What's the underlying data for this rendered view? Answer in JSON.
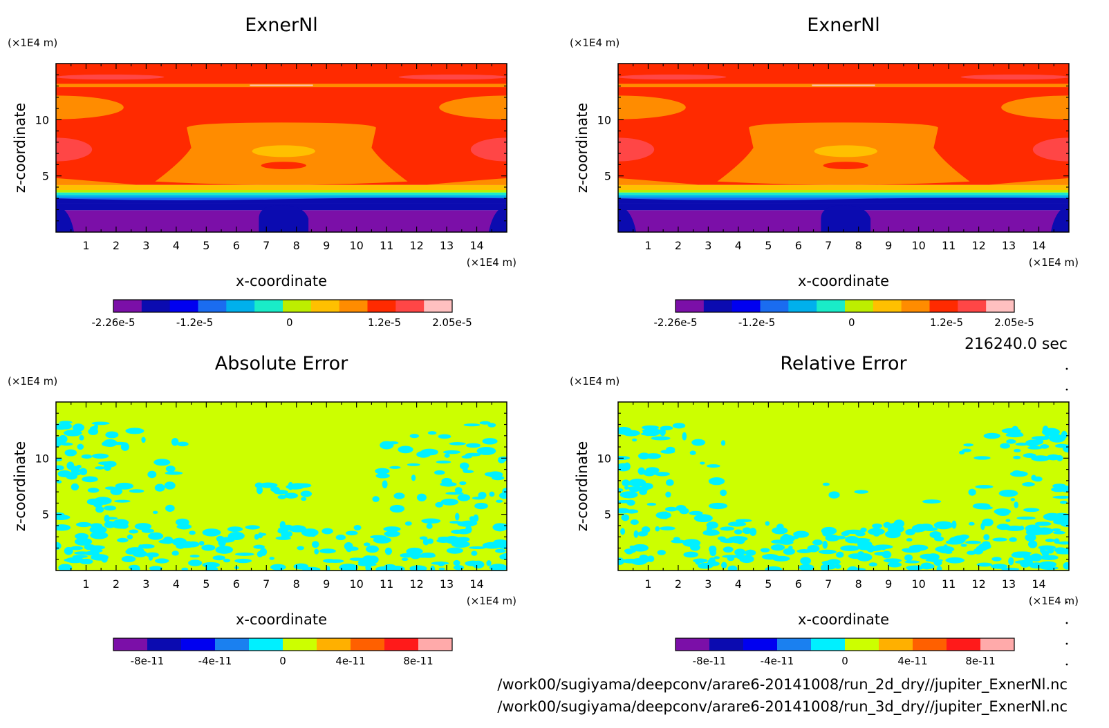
{
  "palettes": {
    "exner": [
      "#7b0fa8",
      "#0b0bb0",
      "#0000f0",
      "#1a6cf0",
      "#00b0ec",
      "#19ecc8",
      "#bdee00",
      "#ffc000",
      "#ff8c00",
      "#ff2a00",
      "#ff4646",
      "#ffc0c0"
    ],
    "error": [
      "#7b0fa8",
      "#0b0bb0",
      "#0000f0",
      "#1a80f0",
      "#00f0ff",
      "#ccff00",
      "#ffb000",
      "#ff6000",
      "#ff1a1a",
      "#ffaaaa"
    ]
  },
  "chart_data": [
    {
      "type": "heatmap",
      "title": "ExnerNl",
      "xlabel": "x-coordinate",
      "ylabel": "z-coordinate",
      "x_unit": "(×1E4 m)",
      "y_unit": "(×1E4 m)",
      "xlim": [
        0,
        15
      ],
      "ylim": [
        0,
        15
      ],
      "x_ticks": [
        "1",
        "2",
        "3",
        "4",
        "5",
        "6",
        "7",
        "8",
        "9",
        "10",
        "11",
        "12",
        "13",
        "14"
      ],
      "y_ticks": [
        "5",
        "10"
      ],
      "colorbar": {
        "palette": "exner",
        "labels": [
          "-2.26e-5",
          "-1.2e-5",
          "0",
          "1.2e-5",
          "2.05e-5"
        ],
        "label_positions": [
          0.0,
          0.24,
          0.52,
          0.8,
          1.0
        ]
      }
    },
    {
      "type": "heatmap",
      "title": "ExnerNl",
      "xlabel": "x-coordinate",
      "ylabel": "z-coordinate",
      "x_unit": "(×1E4 m)",
      "y_unit": "(×1E4 m)",
      "xlim": [
        0,
        15
      ],
      "ylim": [
        0,
        15
      ],
      "x_ticks": [
        "1",
        "2",
        "3",
        "4",
        "5",
        "6",
        "7",
        "8",
        "9",
        "10",
        "11",
        "12",
        "13",
        "14"
      ],
      "y_ticks": [
        "5",
        "10"
      ],
      "colorbar": {
        "palette": "exner",
        "labels": [
          "-2.26e-5",
          "-1.2e-5",
          "0",
          "1.2e-5",
          "2.05e-5"
        ],
        "label_positions": [
          0.0,
          0.24,
          0.52,
          0.8,
          1.0
        ]
      }
    },
    {
      "type": "heatmap",
      "title": "Absolute Error",
      "xlabel": "x-coordinate",
      "ylabel": "z-coordinate",
      "x_unit": "(×1E4 m)",
      "y_unit": "(×1E4 m)",
      "xlim": [
        0,
        15
      ],
      "ylim": [
        0,
        15
      ],
      "x_ticks": [
        "1",
        "2",
        "3",
        "4",
        "5",
        "6",
        "7",
        "8",
        "9",
        "10",
        "11",
        "12",
        "13",
        "14"
      ],
      "y_ticks": [
        "5",
        "10"
      ],
      "colorbar": {
        "palette": "error",
        "labels": [
          "-8e-11",
          "-4e-11",
          "0",
          "4e-11",
          "8e-11"
        ],
        "label_positions": [
          0.1,
          0.3,
          0.5,
          0.7,
          0.9
        ]
      }
    },
    {
      "type": "heatmap",
      "title": "Relative Error",
      "xlabel": "x-coordinate",
      "ylabel": "z-coordinate",
      "x_unit": "(×1E4 m)",
      "y_unit": "(×1E4 m)",
      "xlim": [
        0,
        15
      ],
      "ylim": [
        0,
        15
      ],
      "x_ticks": [
        "1",
        "2",
        "3",
        "4",
        "5",
        "6",
        "7",
        "8",
        "9",
        "10",
        "11",
        "12",
        "13",
        "14"
      ],
      "y_ticks": [
        "5",
        "10"
      ],
      "colorbar": {
        "palette": "error",
        "labels": [
          "-8e-11",
          "-4e-11",
          "0",
          "4e-11",
          "8e-11"
        ],
        "label_positions": [
          0.1,
          0.3,
          0.5,
          0.7,
          0.9
        ]
      }
    }
  ],
  "time_label": "216240.0 sec",
  "file_paths": [
    "/work00/sugiyama/deepconv/arare6-20141008/run_2d_dry//jupiter_ExnerNl.nc",
    "/work00/sugiyama/deepconv/arare6-20141008/run_3d_dry//jupiter_ExnerNl.nc"
  ]
}
